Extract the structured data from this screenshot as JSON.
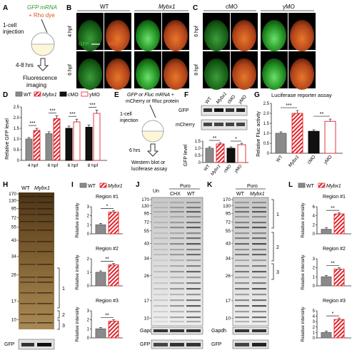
{
  "colors": {
    "gfp": "#2ecc40",
    "rho": "#e0531f",
    "wt": "#8a8a8a",
    "mybx": "#e0242b",
    "cmo": "#111111",
    "ymo": "#e0242b"
  },
  "panels": {
    "A": {
      "letter": "A",
      "mrna_line1": "GFP mRNA",
      "mrna_line2": "+ Rho dye",
      "inj1": "1-cell",
      "inj2": "injection",
      "time": "4-8 hrs",
      "out1": "Fluorescence",
      "out2": "imaging"
    },
    "B": {
      "letter": "B",
      "wt": "WT",
      "mut": "Mybx1",
      "row1": "4 hpf",
      "row2": "6 hpf",
      "gfp": "GFP",
      "rho": "Rho"
    },
    "C": {
      "letter": "C",
      "cmo": "cMO",
      "ymo": "yMO",
      "row1": "6 hpf",
      "row2": "8 hpf"
    },
    "D": {
      "letter": "D",
      "ylabel": "Relative GFP level",
      "legend": [
        "WT",
        "Mybx1",
        "cMO",
        "yMO"
      ],
      "stars": [
        "***",
        "***",
        "***",
        "***"
      ]
    },
    "E": {
      "letter": "E",
      "line1": "GFP or Fluc mRNA +",
      "line2": "mCherry or Rluc protein",
      "inj1": "1-cell",
      "inj2": "injection",
      "time": "6 hrs",
      "out1": "Western blot or",
      "out2": "luciferase assay"
    },
    "F": {
      "letter": "F",
      "cols": [
        "WT",
        "Mybx1",
        "cMO",
        "yMO"
      ],
      "blot1": "GFP",
      "blot2": "mCherry",
      "ylabel": "GFP level",
      "stars": [
        "**",
        "*"
      ]
    },
    "G": {
      "letter": "G",
      "title": "Luciferase reporter assay",
      "ylabel": "Relative Fluc activity",
      "stars": [
        "***",
        "**"
      ]
    },
    "H": {
      "letter": "H",
      "cols": [
        "WT",
        "Mybx1"
      ],
      "regions": [
        "1",
        "2",
        "3"
      ],
      "bottom": "GFP"
    },
    "I": {
      "letter": "I",
      "legend": [
        "WT",
        "Mybx1"
      ],
      "ylabel": "Relative intensity",
      "sub": [
        "Region #1",
        "Region #2",
        "Region #3"
      ],
      "stars": [
        "*",
        "**",
        "**"
      ]
    },
    "J": {
      "letter": "J",
      "puro": "Puro",
      "un": "Un",
      "chx": "CHX",
      "wt": "WT",
      "gapdh": "Gapdh",
      "gfp": "GFP"
    },
    "K": {
      "letter": "K",
      "puro": "Puro",
      "cols": [
        "WT",
        "Mybx1"
      ],
      "regions": [
        "1",
        "2",
        "3"
      ],
      "gapdh": "Gapdh",
      "gfp": "GFP"
    },
    "L": {
      "letter": "L",
      "legend": [
        "WT",
        "Mybx1"
      ],
      "ylabel": "Relative intensity",
      "sub": [
        "Region #1",
        "Region #2",
        "Region #3"
      ],
      "stars": [
        "**",
        "**",
        "*"
      ]
    },
    "mw": [
      "170",
      "130",
      "95",
      "72",
      "55",
      "43",
      "34",
      "26",
      "17",
      "10"
    ]
  },
  "chart_data": [
    {
      "type": "bar",
      "panel": "D",
      "ylabel": "Relative GFP level",
      "ylim": [
        0,
        2.5
      ],
      "categories": [
        "4 hpf",
        "6 hpf",
        "6 hpf",
        "8 hpf"
      ],
      "series": [
        {
          "name": "WT",
          "values": [
            1.0,
            1.25,
            null,
            null
          ]
        },
        {
          "name": "Mybx1",
          "values": [
            1.4,
            1.95,
            null,
            null
          ]
        },
        {
          "name": "cMO",
          "values": [
            null,
            null,
            1.5,
            1.55
          ]
        },
        {
          "name": "yMO",
          "values": [
            null,
            null,
            1.8,
            2.2
          ]
        }
      ],
      "ticks": [
        "0",
        "0.5",
        "1.0",
        "1.5",
        "2.0",
        "2.5"
      ]
    },
    {
      "type": "bar",
      "panel": "F",
      "ylabel": "GFP level",
      "ylim": [
        0,
        1.5
      ],
      "categories": [
        "WT",
        "Mybx1",
        "cMO",
        "yMO"
      ],
      "values": [
        1.0,
        1.3,
        1.0,
        1.25
      ],
      "ticks": [
        "0",
        "0.5",
        "1.0",
        "1.5"
      ]
    },
    {
      "type": "bar",
      "panel": "G",
      "title": "Luciferase reporter assay",
      "ylabel": "Relative Fluc activity",
      "ylim": [
        0,
        2.5
      ],
      "categories": [
        "WT",
        "Mybx1",
        "cMO",
        "yMO"
      ],
      "values": [
        1.0,
        2.0,
        1.1,
        1.6
      ],
      "ticks": [
        "0",
        "0.5",
        "1.0",
        "1.5",
        "2.0",
        "2.5"
      ]
    },
    {
      "type": "bar",
      "panel": "I",
      "groups": [
        {
          "title": "Region #1",
          "ylim": [
            0,
            3
          ],
          "ticks": [
            "0",
            "1",
            "2",
            "3"
          ],
          "values": [
            1.0,
            2.4
          ]
        },
        {
          "title": "Region #2",
          "ylim": [
            0,
            2
          ],
          "ticks": [
            "0",
            "1",
            "2"
          ],
          "values": [
            1.0,
            1.55
          ]
        },
        {
          "title": "Region #3",
          "ylim": [
            0,
            3
          ],
          "ticks": [
            "0",
            "1",
            "2",
            "3"
          ],
          "values": [
            1.0,
            1.85
          ]
        }
      ]
    },
    {
      "type": "bar",
      "panel": "L",
      "groups": [
        {
          "title": "Region #1",
          "ylim": [
            0,
            6
          ],
          "ticks": [
            "0",
            "2",
            "4",
            "6"
          ],
          "values": [
            1.0,
            4.4
          ]
        },
        {
          "title": "Region #2",
          "ylim": [
            0,
            3
          ],
          "ticks": [
            "0",
            "1",
            "2",
            "3"
          ],
          "values": [
            1.0,
            1.85
          ]
        },
        {
          "title": "Region #3",
          "ylim": [
            0,
            5
          ],
          "ticks": [
            "0",
            "1",
            "2",
            "3",
            "4",
            "5"
          ],
          "values": [
            1.0,
            3.4
          ]
        }
      ]
    }
  ]
}
